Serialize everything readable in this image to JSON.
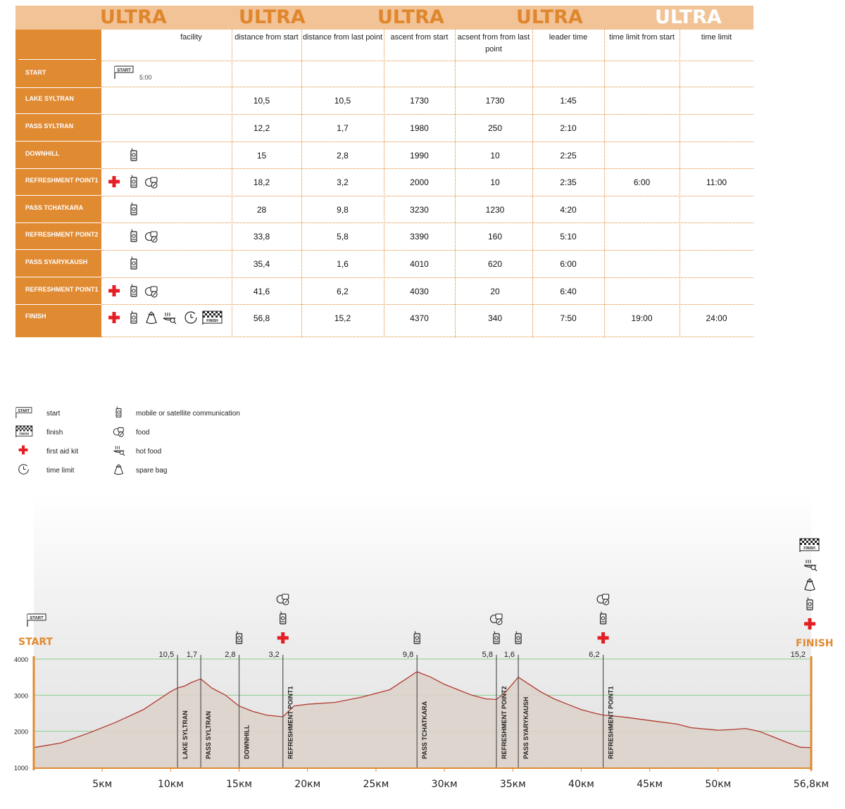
{
  "banner": {
    "labels": [
      "ULTRA",
      "ULTRA",
      "ULTRA",
      "ULTRA",
      "ULTRA"
    ],
    "active_index": 4
  },
  "table": {
    "headers": [
      "facility",
      "distance from start",
      "distance from last point",
      "ascent from start",
      "acsent from from last point",
      "leader time",
      "time limit from start",
      "time limit"
    ],
    "start_time": "5:00",
    "rows": [
      {
        "name": "START",
        "facilities": [
          "start"
        ],
        "dist": "",
        "dlast": "",
        "asc": "",
        "alast": "",
        "leader": "",
        "tl_start": "",
        "tl": ""
      },
      {
        "name": "LAKE SYLTRAN",
        "facilities": [],
        "dist": "10,5",
        "dlast": "10,5",
        "asc": "1730",
        "alast": "1730",
        "leader": "1:45",
        "tl_start": "",
        "tl": ""
      },
      {
        "name": "PASS SYLTRAN",
        "facilities": [],
        "dist": "12,2",
        "dlast": "1,7",
        "asc": "1980",
        "alast": "250",
        "leader": "2:10",
        "tl_start": "",
        "tl": ""
      },
      {
        "name": "DOWNHILL",
        "facilities": [
          "phone"
        ],
        "dist": "15",
        "dlast": "2,8",
        "asc": "1990",
        "alast": "10",
        "leader": "2:25",
        "tl_start": "",
        "tl": ""
      },
      {
        "name": "REFRESHMENT POINT1",
        "facilities": [
          "aid",
          "phone",
          "food"
        ],
        "dist": "18,2",
        "dlast": "3,2",
        "asc": "2000",
        "alast": "10",
        "leader": "2:35",
        "tl_start": "6:00",
        "tl": "11:00"
      },
      {
        "name": "PASS TCHATKARA",
        "facilities": [
          "phone"
        ],
        "dist": "28",
        "dlast": "9,8",
        "asc": "3230",
        "alast": "1230",
        "leader": "4:20",
        "tl_start": "",
        "tl": ""
      },
      {
        "name": "REFRESHMENT POINT2",
        "facilities": [
          "phone",
          "food"
        ],
        "dist": "33,8",
        "dlast": "5,8",
        "asc": "3390",
        "alast": "160",
        "leader": "5:10",
        "tl_start": "",
        "tl": ""
      },
      {
        "name": "PASS SYARYKAUSH",
        "facilities": [
          "phone"
        ],
        "dist": "35,4",
        "dlast": "1,6",
        "asc": "4010",
        "alast": "620",
        "leader": "6:00",
        "tl_start": "",
        "tl": ""
      },
      {
        "name": "REFRESHMENT POINT1",
        "facilities": [
          "aid",
          "phone",
          "food"
        ],
        "dist": "41,6",
        "dlast": "6,2",
        "asc": "4030",
        "alast": "20",
        "leader": "6:40",
        "tl_start": "",
        "tl": ""
      },
      {
        "name": "FINISH",
        "facilities": [
          "aid",
          "phone",
          "bag",
          "hotfood",
          "clock",
          "finish"
        ],
        "dist": "56,8",
        "dlast": "15,2",
        "asc": "4370",
        "alast": "340",
        "leader": "7:50",
        "tl_start": "19:00",
        "tl": "24:00"
      }
    ]
  },
  "legend": [
    {
      "icon": "start",
      "label": "start"
    },
    {
      "icon": "finish",
      "label": "finish"
    },
    {
      "icon": "aid",
      "label": "first aid kit"
    },
    {
      "icon": "clock",
      "label": "time limit"
    },
    {
      "icon": "phone",
      "label": "mobile or satellite communication"
    },
    {
      "icon": "food",
      "label": "food"
    },
    {
      "icon": "hotfood",
      "label": "hot food"
    },
    {
      "icon": "bag",
      "label": "spare bag"
    }
  ],
  "flag_texts": {
    "start": "START",
    "finish": "FINISH"
  },
  "colors": {
    "orange": "#e08a32",
    "banner": "#f1c396",
    "profile_fill": "#ddd3cb",
    "profile_line": "#b23a2e",
    "grid": "#8ccf8c",
    "aid": "#e31e24"
  },
  "chart_data": {
    "type": "area",
    "start_label": "START",
    "finish_label": "FINISH",
    "xlim": [
      0,
      56.8
    ],
    "ylim": [
      1000,
      4000
    ],
    "yticks": [
      1000,
      2000,
      3000,
      4000
    ],
    "xticks": [
      5,
      10,
      15,
      20,
      25,
      30,
      35,
      40,
      45,
      50,
      56.8
    ],
    "xtick_labels": [
      "5км",
      "10км",
      "15км",
      "20км",
      "25км",
      "30км",
      "35км",
      "40км",
      "45км",
      "50км",
      "56,8км"
    ],
    "profile_x": [
      0,
      2,
      4,
      6,
      8,
      10,
      10.5,
      11,
      11.5,
      12.2,
      13,
      14,
      15,
      16,
      17,
      18.2,
      19,
      20,
      22,
      24,
      26,
      27,
      28,
      29,
      30,
      31,
      32,
      33,
      33.8,
      34.5,
      35.4,
      36,
      37,
      38,
      39,
      40,
      41,
      41.6,
      43,
      45,
      47,
      48,
      50,
      51,
      52,
      53,
      54,
      55,
      56,
      56.8
    ],
    "profile_y": [
      1550,
      1680,
      1950,
      2250,
      2600,
      3100,
      3200,
      3250,
      3350,
      3450,
      3200,
      3000,
      2700,
      2550,
      2450,
      2400,
      2700,
      2750,
      2800,
      2950,
      3150,
      3400,
      3650,
      3500,
      3300,
      3150,
      3000,
      2900,
      2880,
      3100,
      3500,
      3350,
      3100,
      2900,
      2750,
      2600,
      2500,
      2450,
      2400,
      2300,
      2200,
      2100,
      2030,
      2050,
      2080,
      2000,
      1850,
      1700,
      1560,
      1550
    ],
    "points": [
      {
        "name": "LAKE SYLTRAN",
        "km": 10.5,
        "label": "10,5",
        "facilities": []
      },
      {
        "name": "PASS SYLTRAN",
        "km": 12.2,
        "label": "1,7",
        "facilities": []
      },
      {
        "name": "DOWNHILL",
        "km": 15,
        "label": "2,8",
        "facilities": [
          "phone"
        ]
      },
      {
        "name": "REFRESHMENT POINT1",
        "km": 18.2,
        "label": "3,2",
        "facilities": [
          "aid",
          "phone",
          "food"
        ]
      },
      {
        "name": "PASS TCHATKARA",
        "km": 28,
        "label": "9,8",
        "facilities": [
          "phone"
        ]
      },
      {
        "name": "REFRESHMENT POINT2",
        "km": 33.8,
        "label": "5,8",
        "facilities": [
          "phone",
          "food"
        ]
      },
      {
        "name": "PASS SYARYKAUSH",
        "km": 35.4,
        "label": "1,6",
        "facilities": [
          "phone"
        ]
      },
      {
        "name": "REFRESHMENT POINT1",
        "km": 41.6,
        "label": "6,2",
        "facilities": [
          "aid",
          "phone",
          "food"
        ]
      }
    ],
    "finish": {
      "km": 56.8,
      "label": "15,2",
      "facilities": [
        "aid",
        "phone",
        "bag",
        "hotfood",
        "finish"
      ]
    }
  }
}
